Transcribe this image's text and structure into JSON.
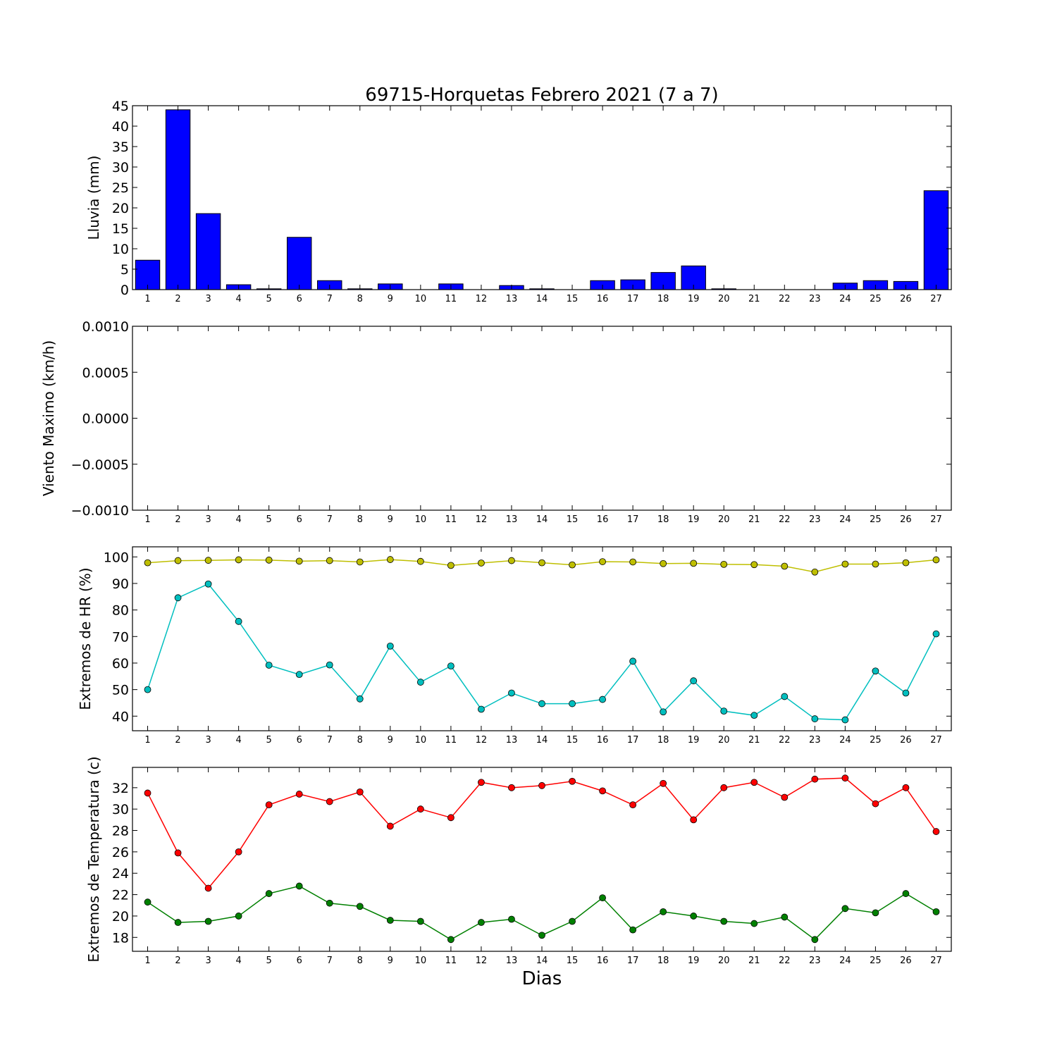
{
  "chart_data": [
    {
      "type": "bar",
      "title": "69715-Horquetas Febrero 2021  (7 a 7)",
      "xlabel": "",
      "ylabel": "Lluvia (mm)",
      "categories": [
        "1",
        "2",
        "3",
        "4",
        "5",
        "6",
        "7",
        "8",
        "9",
        "10",
        "11",
        "12",
        "13",
        "14",
        "15",
        "16",
        "17",
        "18",
        "19",
        "20",
        "21",
        "22",
        "23",
        "24",
        "25",
        "26",
        "27"
      ],
      "values": [
        7.2,
        44.0,
        18.6,
        1.2,
        0.2,
        12.8,
        2.2,
        0.2,
        1.4,
        0.0,
        1.4,
        0.0,
        1.0,
        0.2,
        0.0,
        2.2,
        2.4,
        4.2,
        5.8,
        0.2,
        0.0,
        0.0,
        0.0,
        1.6,
        2.2,
        2.0,
        24.2
      ],
      "ylim": [
        0,
        45
      ],
      "yticks": [
        "0",
        "5",
        "10",
        "15",
        "20",
        "25",
        "30",
        "35",
        "40",
        "45"
      ],
      "bar_color": "#0000ff"
    },
    {
      "type": "line",
      "ylabel": "Viento Maximo (km/h)",
      "categories": [
        "1",
        "2",
        "3",
        "4",
        "5",
        "6",
        "7",
        "8",
        "9",
        "10",
        "11",
        "12",
        "13",
        "14",
        "15",
        "16",
        "17",
        "18",
        "19",
        "20",
        "21",
        "22",
        "23",
        "24",
        "25",
        "26",
        "27"
      ],
      "series": [],
      "ylim": [
        -0.001,
        0.001
      ],
      "yticks": [
        "−0.0010",
        "−0.0005",
        "0.0000",
        "0.0005",
        "0.0010"
      ]
    },
    {
      "type": "line",
      "ylabel": "Extremos de HR (%)",
      "categories": [
        "1",
        "2",
        "3",
        "4",
        "5",
        "6",
        "7",
        "8",
        "9",
        "10",
        "11",
        "12",
        "13",
        "14",
        "15",
        "16",
        "17",
        "18",
        "19",
        "20",
        "21",
        "22",
        "23",
        "24",
        "25",
        "26",
        "27"
      ],
      "series": [
        {
          "color": "#bfbf00",
          "values": [
            97.8,
            98.6,
            98.7,
            98.9,
            98.8,
            98.4,
            98.6,
            98.1,
            99.0,
            98.3,
            96.8,
            97.7,
            98.6,
            97.8,
            97.0,
            98.2,
            98.1,
            97.5,
            97.6,
            97.2,
            97.1,
            96.5,
            94.3,
            97.3,
            97.3,
            97.8,
            98.9
          ]
        },
        {
          "color": "#00bfbf",
          "values": [
            50.0,
            84.6,
            89.8,
            75.7,
            59.2,
            55.7,
            59.3,
            46.5,
            66.4,
            52.8,
            58.9,
            42.6,
            48.7,
            44.7,
            44.7,
            46.3,
            60.7,
            41.6,
            53.3,
            41.9,
            40.3,
            47.4,
            39.0,
            38.6,
            57.0,
            48.7,
            71.0
          ]
        }
      ],
      "ylim": [
        34.5,
        103.8
      ],
      "yticks": [
        "40",
        "50",
        "60",
        "70",
        "80",
        "90",
        "100"
      ]
    },
    {
      "type": "line",
      "ylabel": "Extremos de Temperatura (c)",
      "xlabel": "Dias",
      "categories": [
        "1",
        "2",
        "3",
        "4",
        "5",
        "6",
        "7",
        "8",
        "9",
        "10",
        "11",
        "12",
        "13",
        "14",
        "15",
        "16",
        "17",
        "18",
        "19",
        "20",
        "21",
        "22",
        "23",
        "24",
        "25",
        "26",
        "27"
      ],
      "series": [
        {
          "color": "#ff0000",
          "values": [
            31.5,
            25.9,
            22.6,
            26.0,
            30.4,
            31.4,
            30.7,
            31.6,
            28.4,
            30.0,
            29.2,
            32.5,
            32.0,
            32.2,
            32.6,
            31.7,
            30.4,
            32.4,
            29.0,
            32.0,
            32.5,
            31.1,
            32.8,
            32.9,
            30.5,
            32.0,
            27.9
          ]
        },
        {
          "color": "#008000",
          "values": [
            21.3,
            19.4,
            19.5,
            20.0,
            22.1,
            22.8,
            21.2,
            20.9,
            19.6,
            19.5,
            17.8,
            19.4,
            19.7,
            18.2,
            19.5,
            21.7,
            18.7,
            20.4,
            20.0,
            19.5,
            19.3,
            19.9,
            17.8,
            20.7,
            20.3,
            22.1,
            20.4
          ]
        }
      ],
      "ylim": [
        16.7,
        33.9
      ],
      "yticks": [
        "18",
        "20",
        "22",
        "24",
        "26",
        "28",
        "30",
        "32"
      ]
    }
  ]
}
